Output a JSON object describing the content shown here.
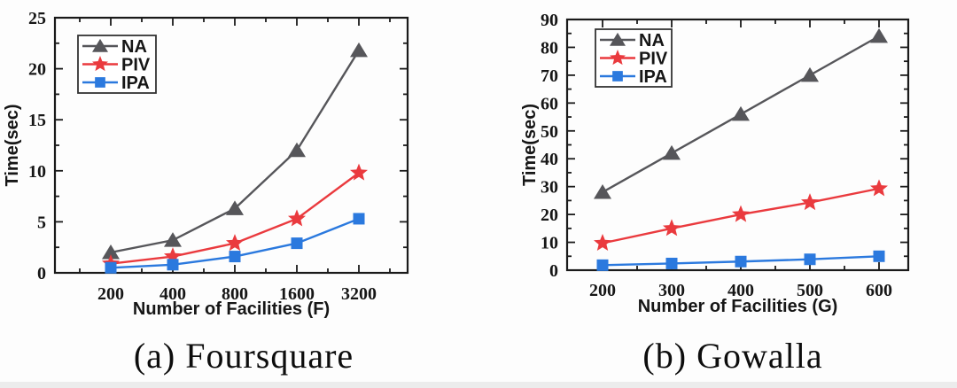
{
  "figure": {
    "background": "#fdfdfd",
    "ink_color": "#1a1a1a"
  },
  "chart_data": [
    {
      "id": "foursquare",
      "type": "line",
      "caption": "(a) Foursquare",
      "xlabel": "Number of Facilities (F)",
      "ylabel": "Time(sec)",
      "categories": [
        "200",
        "400",
        "800",
        "1600",
        "3200"
      ],
      "ylim": [
        0,
        25
      ],
      "ymajor": 5,
      "yminor": 2.5,
      "grid": false,
      "legend_position": "top-left",
      "series": [
        {
          "name": "NA",
          "marker": "triangle",
          "color": "#56565a",
          "values": [
            2.0,
            3.2,
            6.3,
            12.0,
            21.8
          ]
        },
        {
          "name": "PIV",
          "marker": "star",
          "color": "#ea3a3e",
          "values": [
            0.9,
            1.6,
            2.9,
            5.3,
            9.8
          ]
        },
        {
          "name": "IPA",
          "marker": "square",
          "color": "#2b79de",
          "values": [
            0.5,
            0.8,
            1.6,
            2.9,
            5.3
          ]
        }
      ]
    },
    {
      "id": "gowalla",
      "type": "line",
      "caption": "(b) Gowalla",
      "xlabel": "Number of Facilities (G)",
      "ylabel": "Time(sec)",
      "categories": [
        "200",
        "300",
        "400",
        "500",
        "600"
      ],
      "ylim": [
        0,
        90
      ],
      "ymajor": 10,
      "yminor": 5,
      "grid": false,
      "legend_position": "top-left",
      "series": [
        {
          "name": "NA",
          "marker": "triangle",
          "color": "#56565a",
          "values": [
            28,
            42,
            56,
            70,
            84
          ]
        },
        {
          "name": "PIV",
          "marker": "star",
          "color": "#ea3a3e",
          "values": [
            9.7,
            15.0,
            20.0,
            24.3,
            29.3
          ]
        },
        {
          "name": "IPA",
          "marker": "square",
          "color": "#2b79de",
          "values": [
            1.8,
            2.4,
            3.1,
            3.9,
            5.0
          ]
        }
      ]
    }
  ]
}
